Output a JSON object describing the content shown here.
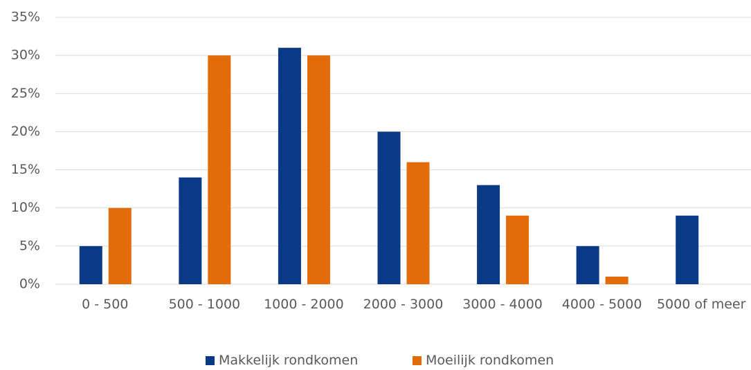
{
  "chart_data": {
    "type": "bar",
    "categories": [
      "0 - 500",
      "500 - 1000",
      "1000 - 2000",
      "2000 - 3000",
      "3000 - 4000",
      "4000 - 5000",
      "5000 of meer"
    ],
    "series": [
      {
        "name": "Makkelijk rondkomen",
        "color": "#0a3a86",
        "values": [
          5,
          14,
          31,
          20,
          13,
          5,
          9
        ]
      },
      {
        "name": "Moeilijk rondkomen",
        "color": "#e36c0a",
        "values": [
          10,
          30,
          30,
          16,
          9,
          1,
          0
        ]
      }
    ],
    "ylim": [
      0,
      35
    ],
    "yticks": [
      {
        "value": 0,
        "label": "0%"
      },
      {
        "value": 5,
        "label": "5%"
      },
      {
        "value": 10,
        "label": "10%"
      },
      {
        "value": 15,
        "label": "15%"
      },
      {
        "value": 20,
        "label": "20%"
      },
      {
        "value": 25,
        "label": "25%"
      },
      {
        "value": 30,
        "label": "30%"
      },
      {
        "value": 35,
        "label": "35%"
      }
    ],
    "grid": true,
    "legend": "bottom"
  }
}
